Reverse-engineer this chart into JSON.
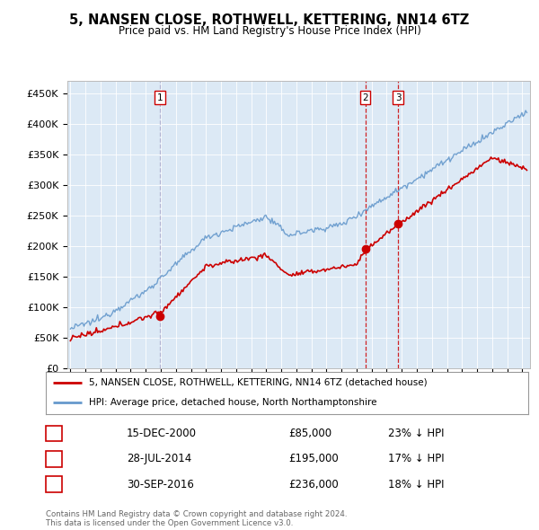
{
  "title": "5, NANSEN CLOSE, ROTHWELL, KETTERING, NN14 6TZ",
  "subtitle": "Price paid vs. HM Land Registry's House Price Index (HPI)",
  "ylabel_ticks": [
    "£0",
    "£50K",
    "£100K",
    "£150K",
    "£200K",
    "£250K",
    "£300K",
    "£350K",
    "£400K",
    "£450K"
  ],
  "ytick_values": [
    0,
    50000,
    100000,
    150000,
    200000,
    250000,
    300000,
    350000,
    400000,
    450000
  ],
  "ylim_min": 0,
  "ylim_max": 470000,
  "xlim_start": 1994.8,
  "xlim_end": 2025.5,
  "background_color": "#dce9f5",
  "transaction_dates": [
    2000.96,
    2014.57,
    2016.75
  ],
  "transaction_prices": [
    85000,
    195000,
    236000
  ],
  "transaction_labels": [
    "1",
    "2",
    "3"
  ],
  "vline1_color": "#aaaacc",
  "vline23_color": "#cc0000",
  "legend_line1": "5, NANSEN CLOSE, ROTHWELL, KETTERING, NN14 6TZ (detached house)",
  "legend_line2": "HPI: Average price, detached house, North Northamptonshire",
  "table_data": [
    [
      "1",
      "15-DEC-2000",
      "£85,000",
      "23% ↓ HPI"
    ],
    [
      "2",
      "28-JUL-2014",
      "£195,000",
      "17% ↓ HPI"
    ],
    [
      "3",
      "30-SEP-2016",
      "£236,000",
      "18% ↓ HPI"
    ]
  ],
  "footer_text": "Contains HM Land Registry data © Crown copyright and database right 2024.\nThis data is licensed under the Open Government Licence v3.0.",
  "red_color": "#cc0000",
  "blue_color": "#6699cc"
}
